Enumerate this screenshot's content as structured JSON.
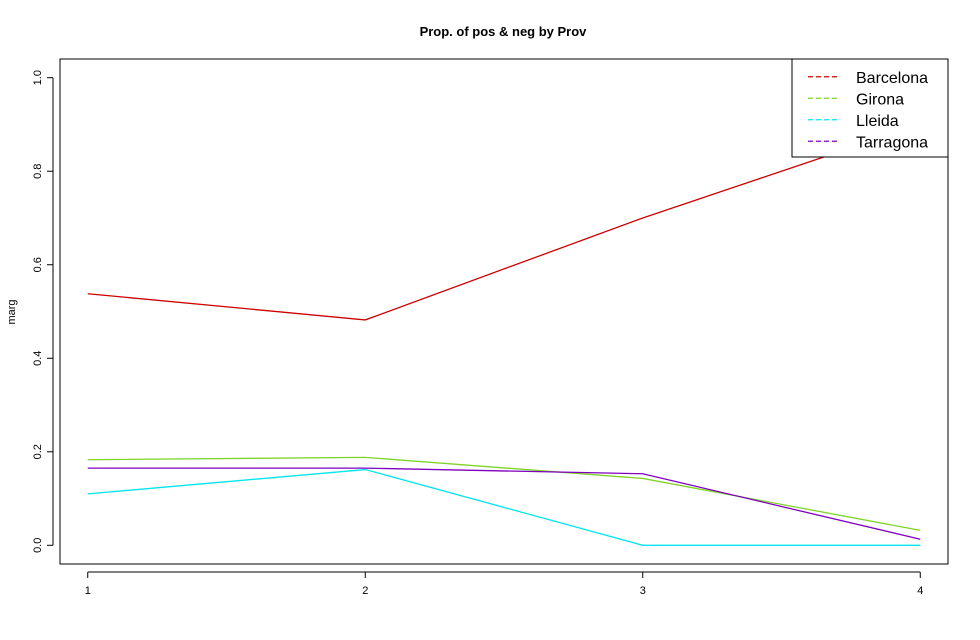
{
  "chart_data": {
    "type": "line",
    "title": "Prop. of pos & neg by Prov",
    "xlabel": "",
    "ylabel": "marg",
    "x": [
      1,
      2,
      3,
      4
    ],
    "xticks": [
      "1",
      "2",
      "3",
      "4"
    ],
    "yticks": [
      "0.0",
      "0.2",
      "0.4",
      "0.6",
      "0.8",
      "1.0"
    ],
    "xlim": [
      0.9,
      4.1
    ],
    "ylim": [
      -0.04,
      1.04
    ],
    "grid": false,
    "legend_position": "top-right",
    "series": [
      {
        "name": "Barcelona",
        "color": "#CD0000",
        "values": [
          0.538,
          0.482,
          0.7,
          0.9
        ]
      },
      {
        "name": "Girona",
        "color": "#7FD42A",
        "values": [
          0.183,
          0.188,
          0.143,
          0.032
        ]
      },
      {
        "name": "Lleida",
        "color": "#00E5EE",
        "values": [
          0.11,
          0.162,
          0.0,
          0.0
        ]
      },
      {
        "name": "Tarragona",
        "color": "#7F00BF",
        "values": [
          0.165,
          0.165,
          0.153,
          0.013
        ]
      }
    ]
  }
}
